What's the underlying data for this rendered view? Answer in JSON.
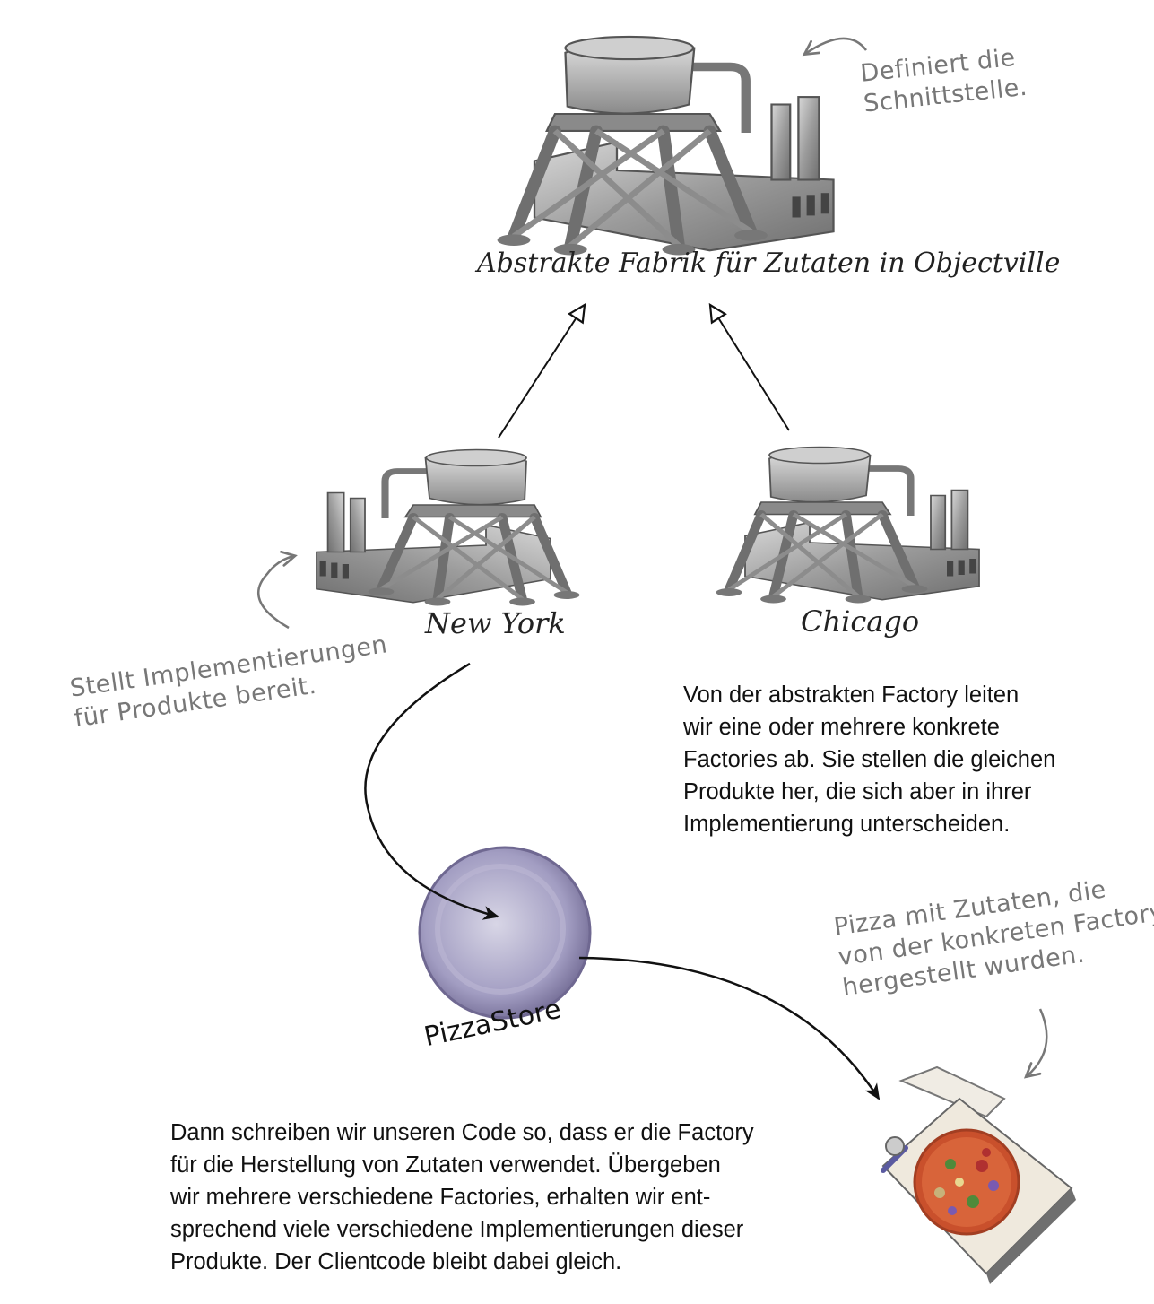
{
  "abstract_factory": {
    "label": "Abstrakte Fabrik für Zutaten in Objectville",
    "note": [
      "Definiert die",
      "Schnittstelle."
    ]
  },
  "concrete_factories": {
    "new_york": {
      "label": "New York"
    },
    "chicago": {
      "label": "Chicago"
    },
    "note": [
      "Stellt Implementierungen",
      "für Produkte bereit."
    ]
  },
  "explanation_top": [
    "Von der abstrakten Factory leiten",
    "wir eine oder mehrere konkrete",
    "Factories ab. Sie stellen die gleichen",
    "Produkte her, die sich aber in ihrer",
    "Implementierung unterscheiden."
  ],
  "pizza_store": {
    "label": "PizzaStore"
  },
  "pizza": {
    "note": [
      "Pizza mit Zutaten, die",
      "von der konkreten Factory",
      "hergestellt wurden."
    ]
  },
  "explanation_bottom": [
    "Dann schreiben wir unseren Code so, dass er die Factory",
    "für die Herstellung von Zutaten verwendet. Übergeben",
    "wir mehrere verschiedene Factories, erhalten wir ent-",
    "sprechend viele verschiedene Implementierungen dieser",
    "Produkte. Der Clientcode bleibt dabei gleich."
  ],
  "colors": {
    "factory_gray": "#9a9a9a",
    "store_purple": "#8f89b0",
    "note_gray": "#777777"
  },
  "icons": [
    "factory-icon",
    "pizza-store-disc",
    "pizza-box-icon"
  ]
}
